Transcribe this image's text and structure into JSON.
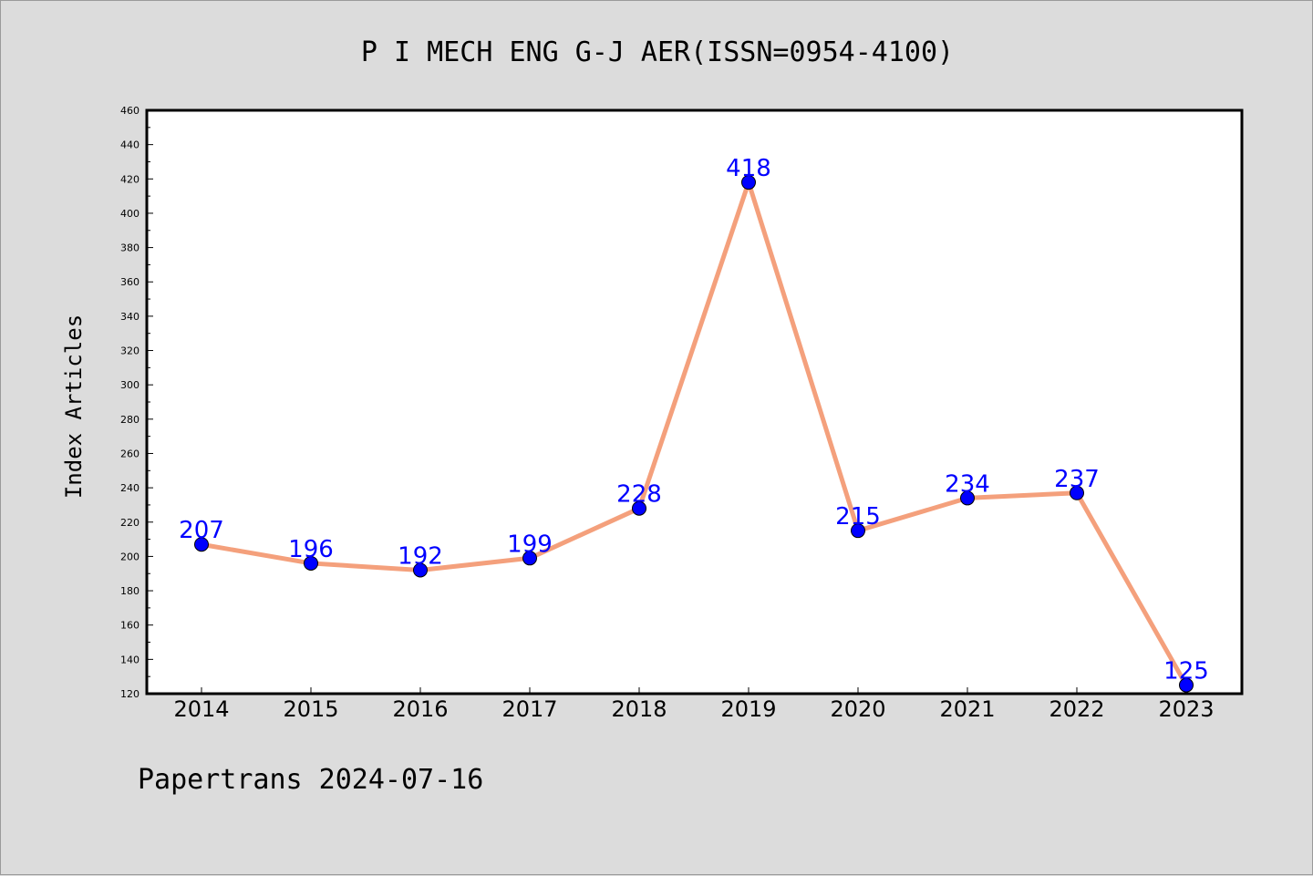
{
  "chart_data": {
    "type": "line",
    "title": "P I MECH ENG G-J AER(ISSN=0954-4100)",
    "xlabel": "",
    "ylabel": "Index Articles",
    "categories": [
      "2014",
      "2015",
      "2016",
      "2017",
      "2018",
      "2019",
      "2020",
      "2021",
      "2022",
      "2023"
    ],
    "values": [
      207,
      196,
      192,
      199,
      228,
      418,
      215,
      234,
      237,
      125
    ],
    "ylim": [
      120,
      460
    ],
    "yticks": [
      120,
      140,
      160,
      180,
      200,
      220,
      240,
      260,
      280,
      300,
      320,
      340,
      360,
      380,
      400,
      420,
      440,
      460
    ],
    "grid": false,
    "line_color": "#f4a07c",
    "marker_color": "#0000ff",
    "label_color": "#0000ff",
    "plot_background": "#ffffff",
    "figure_background": "#dcdcdc"
  },
  "footer": {
    "text": "Papertrans 2024-07-16"
  }
}
